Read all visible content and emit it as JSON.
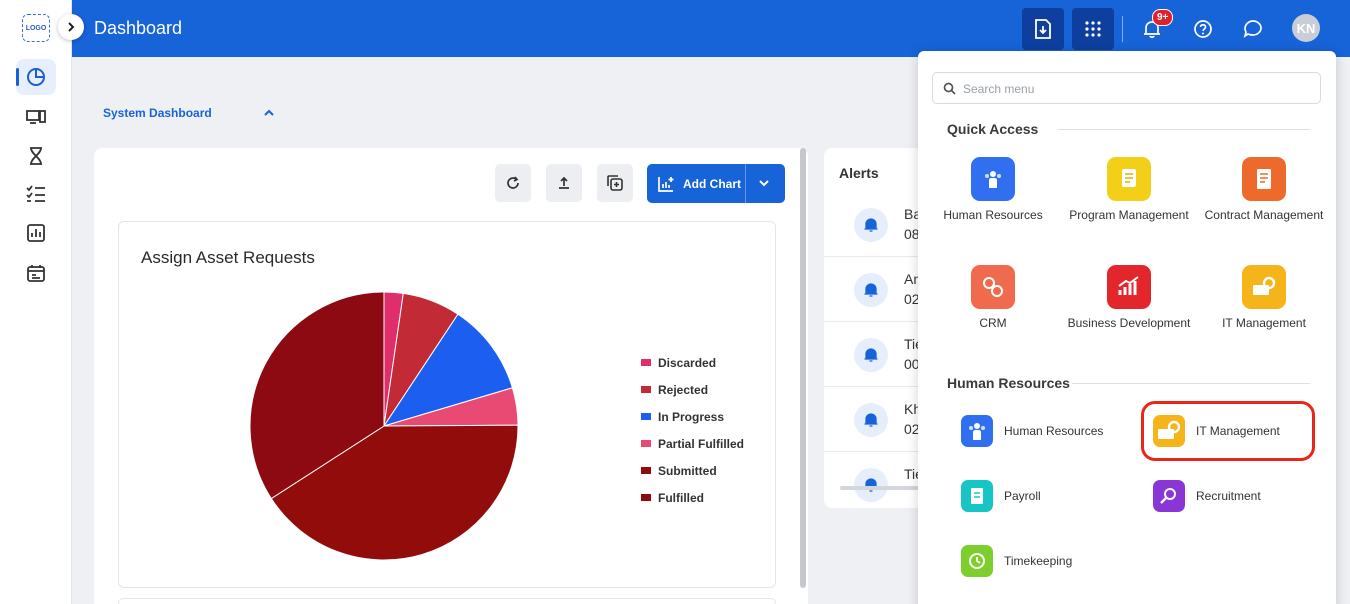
{
  "rail": {
    "logo_text": "LOGO",
    "items": [
      {
        "icon": "dashboard-pie-icon",
        "active": true
      },
      {
        "icon": "devices-icon",
        "active": false
      },
      {
        "icon": "hourglass-icon",
        "active": false
      },
      {
        "icon": "checklist-icon",
        "active": false
      },
      {
        "icon": "report-icon",
        "active": false
      },
      {
        "icon": "calendar-icon",
        "active": false
      }
    ]
  },
  "header": {
    "title": "Dashboard",
    "notification_badge": "9+",
    "avatar_initials": "KN",
    "accent": "#1763d8"
  },
  "dashboard": {
    "system_dashboard_label": "System Dashboard",
    "add_chart_label": "Add Chart"
  },
  "chart_data": {
    "type": "pie",
    "title": "Assign Asset Requests",
    "legend_position": "right",
    "slices": [
      {
        "name": "Discarded",
        "value": 2.3,
        "color": "#e02d6b"
      },
      {
        "name": "Rejected",
        "value": 7.0,
        "color": "#c22a36"
      },
      {
        "name": "In Progress",
        "value": 11.1,
        "color": "#1b5ef0"
      },
      {
        "name": "Partial Fulfilled",
        "value": 4.5,
        "color": "#e84a74"
      },
      {
        "name": "Submitted",
        "value": 41.0,
        "color": "#920c0c"
      },
      {
        "name": "Fulfilled",
        "value": 34.1,
        "color": "#8e0a12"
      }
    ]
  },
  "alerts": {
    "title": "Alerts",
    "items": [
      {
        "line1": "Ba",
        "line2": "08"
      },
      {
        "line1": "An",
        "line2": "02"
      },
      {
        "line1": "Tie",
        "line2": "00"
      },
      {
        "line1": "Kh",
        "line2": "02"
      },
      {
        "line1": "Tie",
        "line2": ""
      }
    ]
  },
  "menu": {
    "search_placeholder": "Search menu",
    "quick_access_title": "Quick Access",
    "quick_access": [
      {
        "label": "Human Resources",
        "color": "#2f6ff0",
        "icon": "people-icon"
      },
      {
        "label": "Program Management",
        "color": "#f4cf1a",
        "icon": "program-doc-icon"
      },
      {
        "label": "Contract Management",
        "color": "#ee6a2c",
        "icon": "contract-icon"
      },
      {
        "label": "CRM",
        "color": "#f06b4e",
        "icon": "crm-icon"
      },
      {
        "label": "Business Development",
        "color": "#e2262b",
        "icon": "growth-chart-icon"
      },
      {
        "label": "IT Management",
        "color": "#f5b41a",
        "icon": "it-gear-icon"
      }
    ],
    "hr_section_title": "Human Resources",
    "hr_items": [
      {
        "label": "Human Resources",
        "color": "#2f6ff0",
        "icon": "people-icon"
      },
      {
        "label": "IT Management",
        "color": "#f5b41a",
        "icon": "it-gear-icon"
      },
      {
        "label": "Payroll",
        "color": "#18c5c5",
        "icon": "payroll-icon"
      },
      {
        "label": "Recruitment",
        "color": "#8a36d6",
        "icon": "recruitment-icon"
      },
      {
        "label": "Timekeeping",
        "color": "#7ccf2c",
        "icon": "timekeeping-icon"
      }
    ]
  }
}
